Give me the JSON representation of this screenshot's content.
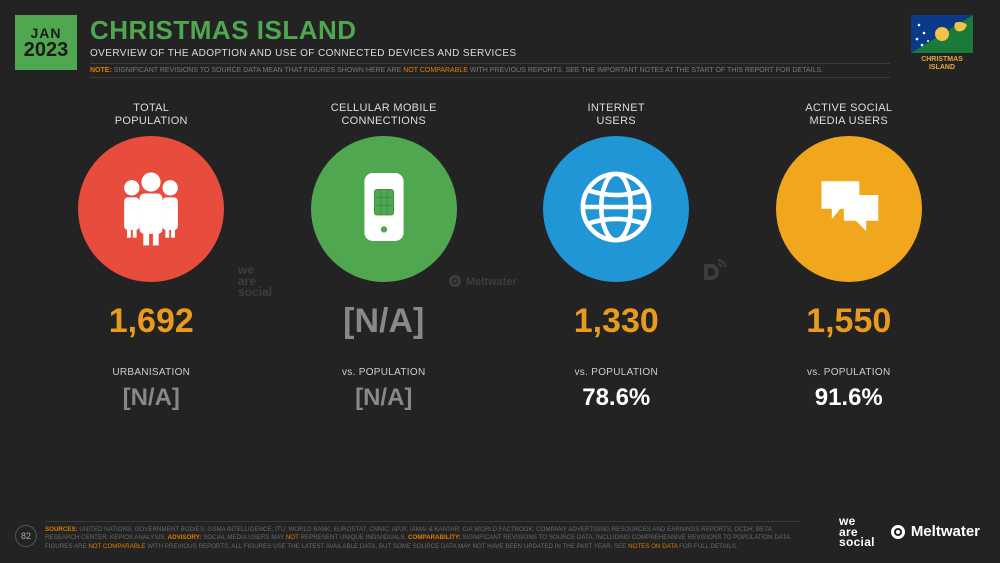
{
  "date": {
    "month": "JAN",
    "year": "2023"
  },
  "title": "CHRISTMAS ISLAND",
  "subtitle": "OVERVIEW OF THE ADOPTION AND USE OF CONNECTED DEVICES AND SERVICES",
  "note": {
    "label": "NOTE:",
    "text_before": " SIGNIFICANT REVISIONS TO SOURCE DATA MEAN THAT FIGURES SHOWN HERE ARE ",
    "highlight": "NOT COMPARABLE",
    "text_after": " WITH PREVIOUS REPORTS. SEE THE IMPORTANT NOTES AT THE START OF THIS REPORT FOR DETAILS."
  },
  "flag_label": "CHRISTMAS\nISLAND",
  "colors": {
    "background": "#232323",
    "accent_green": "#4fa84f",
    "accent_orange": "#e89b1d",
    "na_gray": "#888888",
    "circle_red": "#e84c3d",
    "circle_green": "#4fa84f",
    "circle_blue": "#2196d6",
    "circle_yellow": "#f0a71d"
  },
  "metrics": [
    {
      "label": "TOTAL\nPOPULATION",
      "circle_color": "#e84c3d",
      "icon": "people",
      "value": "1,692",
      "value_na": false,
      "sub_label": "URBANISATION",
      "sub_value": "[N/A]",
      "sub_na": true
    },
    {
      "label": "CELLULAR MOBILE\nCONNECTIONS",
      "circle_color": "#4fa84f",
      "icon": "sim",
      "value": "[N/A]",
      "value_na": true,
      "sub_label": "vs. POPULATION",
      "sub_value": "[N/A]",
      "sub_na": true
    },
    {
      "label": "INTERNET\nUSERS",
      "circle_color": "#2196d6",
      "icon": "globe",
      "value": "1,330",
      "value_na": false,
      "sub_label": "vs. POPULATION",
      "sub_value": "78.6%",
      "sub_na": false
    },
    {
      "label": "ACTIVE SOCIAL\nMEDIA USERS",
      "circle_color": "#f0a71d",
      "icon": "chat",
      "value": "1,550",
      "value_na": false,
      "sub_label": "vs. POPULATION",
      "sub_value": "91.6%",
      "sub_na": false
    }
  ],
  "watermarks": {
    "was": "we\nare\nsocial",
    "mw": "Meltwater",
    "d": "D"
  },
  "footer": {
    "sources_label": "SOURCES:",
    "sources_text": " UNITED NATIONS; GOVERNMENT BODIES; GSMA INTELLIGENCE; ITU; WORLD BANK; EUROSTAT; CNNIC; APJII; IAMAI & KANTAR; CIA WORLD FACTBOOK; COMPANY ADVERTISING RESOURCES AND EARNINGS REPORTS; OCDH; BETA RESEARCH CENTER; KEPIOS ANALYSIS. ",
    "advisory_label": "ADVISORY:",
    "advisory_text": " SOCIAL MEDIA USERS MAY ",
    "advisory_hl": "NOT",
    "advisory_text2": " REPRESENT UNIQUE INDIVIDUALS. ",
    "comp_label": "COMPARABILITY:",
    "comp_text": " SIGNIFICANT REVISIONS TO SOURCE DATA, INCLUDING COMPREHENSIVE REVISIONS TO POPULATION DATA. FIGURES ARE ",
    "comp_hl": "NOT COMPARABLE",
    "comp_text2": " WITH PREVIOUS REPORTS. ALL FIGURES USE THE LATEST AVAILABLE DATA, BUT SOME SOURCE DATA MAY NOT HAVE BEEN UPDATED IN THE PAST YEAR. SEE ",
    "comp_hl2": "NOTES ON DATA",
    "comp_text3": " FOR FULL DETAILS."
  },
  "page_number": "82",
  "footer_logos": {
    "was": "we\nare\nsocial",
    "mw": "Meltwater"
  }
}
